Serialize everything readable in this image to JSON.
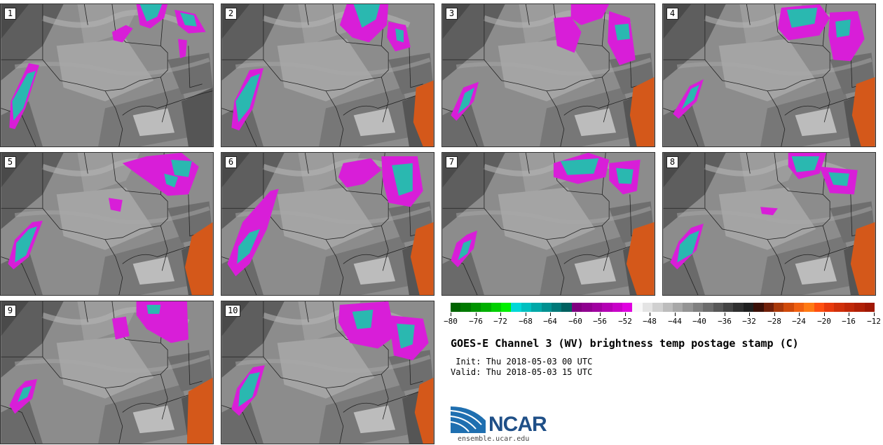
{
  "panels": [
    {
      "label": "1"
    },
    {
      "label": "2"
    },
    {
      "label": "3"
    },
    {
      "label": "4"
    },
    {
      "label": "5"
    },
    {
      "label": "6"
    },
    {
      "label": "7"
    },
    {
      "label": "8"
    },
    {
      "label": "9"
    },
    {
      "label": "10"
    }
  ],
  "colorbar": {
    "ticks": [
      "−80",
      "−76",
      "−72",
      "−68",
      "−64",
      "−60",
      "−56",
      "−52",
      "−48",
      "−44",
      "−40",
      "−36",
      "−32",
      "−28",
      "−24",
      "−20",
      "−16",
      "−12"
    ],
    "colors": [
      "#006400",
      "#007a00",
      "#009400",
      "#00b000",
      "#00d000",
      "#00f000",
      "#00d8d8",
      "#00c0c0",
      "#00a8a8",
      "#009090",
      "#007878",
      "#006060",
      "#800080",
      "#8f008f",
      "#a000a0",
      "#b400b4",
      "#c800c8",
      "#e000e0",
      "#f8f8f8",
      "#e4e4e4",
      "#d0d0d0",
      "#bcbcbc",
      "#a8a8a8",
      "#949494",
      "#808080",
      "#6c6c6c",
      "#585858",
      "#444444",
      "#303030",
      "#202020",
      "#3a1008",
      "#70200a",
      "#a8380a",
      "#d04a0a",
      "#f06010",
      "#ff7a14",
      "#ff5010",
      "#e83a0c",
      "#d0300a",
      "#c02808",
      "#b02006",
      "#a01804"
    ]
  },
  "title": "GOES-E Channel 3 (WV) brightness temp postage stamp (C)",
  "init_line": " Init: Thu 2018-05-03 00 UTC",
  "valid_line": "Valid: Thu 2018-05-03 15 UTC",
  "logo_text": "NCAR",
  "url": "ensemble.ucar.edu",
  "palette": {
    "magenta": "#d81ed8",
    "cyan": "#2ab8b0",
    "orange": "#d4581a",
    "dark": "#4a4a4a",
    "light": "#d8d8d8"
  }
}
